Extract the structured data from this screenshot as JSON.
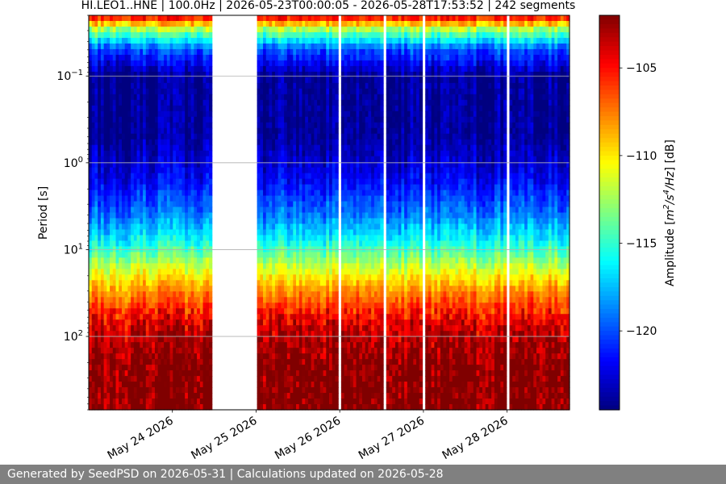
{
  "chart_data": {
    "type": "heatmap",
    "title": "HI.LEO1..HNE | 100.0Hz | 2026-05-23T00:00:05 - 2026-05-28T17:53:52 | 242 segments",
    "ylabel": "Period [s]",
    "y_scale": "log",
    "y_inverted": true,
    "ylim": [
      0.02,
      700
    ],
    "y_ticks": [
      {
        "value": 0.1,
        "base": "10",
        "exp": "−1"
      },
      {
        "value": 1,
        "base": "10",
        "exp": "0"
      },
      {
        "value": 10,
        "base": "10",
        "exp": "1"
      },
      {
        "value": 100,
        "base": "10",
        "exp": "2"
      }
    ],
    "x_unit": "day",
    "xlim": [
      "2026-05-23T00:00:05",
      "2026-05-28T17:53:52"
    ],
    "x_ticks": [
      {
        "label": "May 24 2026",
        "date": "2026-05-24"
      },
      {
        "label": "May 25 2026",
        "date": "2026-05-25"
      },
      {
        "label": "May 26 2026",
        "date": "2026-05-26"
      },
      {
        "label": "May 27 2026",
        "date": "2026-05-27"
      },
      {
        "label": "May 28 2026",
        "date": "2026-05-28"
      }
    ],
    "grid": "horizontal",
    "data_gaps": [
      {
        "start": "2026-05-23T23:50",
        "end": "2026-05-24T00:10"
      },
      {
        "start": "2026-05-24T11:30",
        "end": "2026-05-25T00:05"
      },
      {
        "start": "2026-05-25T23:55",
        "end": "2026-05-26T00:10"
      },
      {
        "start": "2026-05-26T12:45",
        "end": "2026-05-26T13:00"
      },
      {
        "start": "2026-05-26T23:55",
        "end": "2026-05-27T00:10"
      },
      {
        "start": "2026-05-28T00:00",
        "end": "2026-05-28T00:15"
      },
      {
        "start": "2026-05-28T12:35",
        "end": "2026-05-28T12:50"
      }
    ],
    "colorbar": {
      "label_prefix": "Amplitude [",
      "label_m": "m",
      "label_m_exp": "2",
      "label_s": "/s",
      "label_s_exp": "4",
      "label_hz": "/Hz",
      "label_suffix": "] [dB]",
      "range": [
        -124.5,
        -102
      ],
      "colormap": "jet",
      "ticks": [
        {
          "value": -105,
          "label": "−105"
        },
        {
          "value": -110,
          "label": "−110"
        },
        {
          "value": -115,
          "label": "−115"
        },
        {
          "value": -120,
          "label": "−120"
        }
      ]
    },
    "amplitude_profile": [
      {
        "period": 0.02,
        "db": -104
      },
      {
        "period": 0.03,
        "db": -113
      },
      {
        "period": 0.05,
        "db": -120
      },
      {
        "period": 0.1,
        "db": -124
      },
      {
        "period": 0.5,
        "db": -124
      },
      {
        "period": 1.5,
        "db": -122
      },
      {
        "period": 4,
        "db": -119
      },
      {
        "period": 8,
        "db": -116
      },
      {
        "period": 15,
        "db": -112
      },
      {
        "period": 30,
        "db": -108
      },
      {
        "period": 70,
        "db": -104
      },
      {
        "period": 200,
        "db": -102
      },
      {
        "period": 700,
        "db": -102
      }
    ]
  },
  "footer": {
    "text": "Generated by SeedPSD on 2026-05-31 | Calculations updated on 2026-05-28"
  }
}
